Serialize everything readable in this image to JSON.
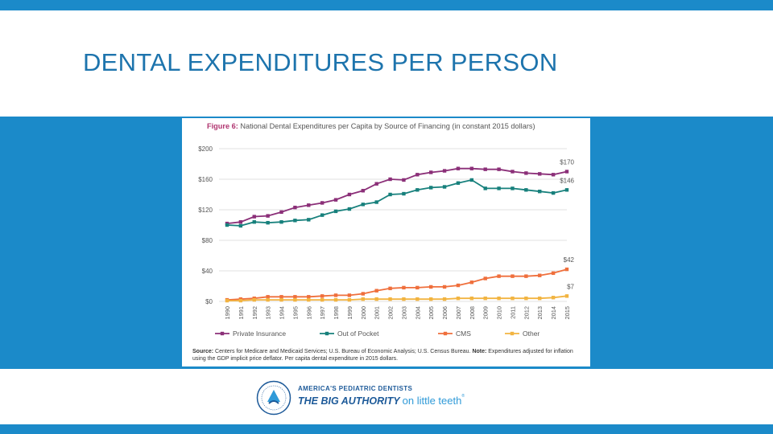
{
  "slide": {
    "title": "DENTAL EXPENDITURES PER PERSON"
  },
  "figure": {
    "label": "Figure 6:",
    "caption": "National Dental Expenditures per Capita by Source of Financing (in constant 2015 dollars)",
    "source_label": "Source:",
    "source_text": "Centers for Medicare and Medicaid Services; U.S. Bureau of Economic Analysis; U.S. Census Bureau.",
    "note_label": "Note:",
    "note_text": "Expenditures adjusted for inflation using the GDP implicit price deflator. Per capita dental expenditure in 2015 dollars."
  },
  "logo": {
    "line1": "AMERICA'S PEDIATRIC DENTISTS",
    "strong": "THE BIG AUTHORITY",
    "light": "on little teeth",
    "reg": "®"
  },
  "colors": {
    "brand_blue": "#1b8ac9",
    "title_blue": "#1d74ad",
    "private_insurance": "#8b2f78",
    "out_of_pocket": "#17807c",
    "cms": "#ef6f3c",
    "other": "#f2b441"
  },
  "chart_data": {
    "type": "line",
    "x": [
      1990,
      1991,
      1992,
      1993,
      1994,
      1995,
      1996,
      1997,
      1998,
      1999,
      2000,
      2001,
      2002,
      2003,
      2004,
      2005,
      2006,
      2007,
      2008,
      2009,
      2010,
      2011,
      2012,
      2013,
      2014,
      2015
    ],
    "ylim": [
      0,
      200
    ],
    "yticks": [
      0,
      40,
      80,
      120,
      160,
      200
    ],
    "ytick_labels": [
      "$0",
      "$40",
      "$80",
      "$120",
      "$160",
      "$200"
    ],
    "grid": true,
    "legend_position": "bottom",
    "series": [
      {
        "name": "Private Insurance",
        "color": "#8b2f78",
        "values": [
          102,
          104,
          111,
          112,
          117,
          123,
          126,
          129,
          133,
          140,
          145,
          154,
          160,
          159,
          166,
          169,
          171,
          174,
          174,
          173,
          173,
          170,
          168,
          167,
          166,
          170
        ],
        "end_label": "$170"
      },
      {
        "name": "Out of Pocket",
        "color": "#17807c",
        "values": [
          100,
          99,
          104,
          103,
          104,
          106,
          107,
          113,
          118,
          121,
          127,
          130,
          140,
          141,
          146,
          149,
          150,
          155,
          159,
          148,
          148,
          148,
          146,
          144,
          142,
          146
        ],
        "end_label": "$146"
      },
      {
        "name": "CMS",
        "color": "#ef6f3c",
        "values": [
          2,
          3,
          4,
          6,
          6,
          6,
          6,
          7,
          8,
          8,
          10,
          14,
          17,
          18,
          18,
          19,
          19,
          21,
          25,
          30,
          33,
          33,
          33,
          34,
          37,
          42
        ],
        "end_label": "$42"
      },
      {
        "name": "Other",
        "color": "#f2b441",
        "values": [
          1,
          1,
          2,
          2,
          2,
          2,
          2,
          2,
          2,
          2,
          3,
          3,
          3,
          3,
          3,
          3,
          3,
          4,
          4,
          4,
          4,
          4,
          4,
          4,
          5,
          7
        ],
        "end_label": "$7"
      }
    ]
  }
}
